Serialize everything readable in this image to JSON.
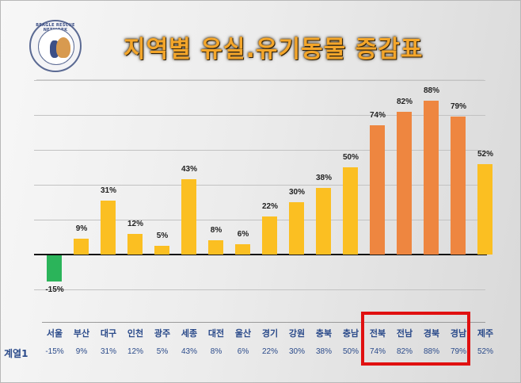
{
  "header": {
    "title": "지역별 유실.유기동물 증감표",
    "logo_text": "BEAGLE RESCUE NETWORK"
  },
  "table": {
    "series_label": "계열1"
  },
  "colors": {
    "negative": "#2bb45a",
    "positive": "#fbbf22",
    "highlight": "#ee8640",
    "highlight_box": "#e01010",
    "title": "#f4a62a"
  },
  "chart_data": {
    "type": "bar",
    "title": "지역별 유실.유기동물 증감표",
    "xlabel": "",
    "ylabel": "",
    "categories": [
      "서울",
      "부산",
      "대구",
      "인천",
      "광주",
      "세종",
      "대전",
      "울산",
      "경기",
      "강원",
      "충북",
      "충남",
      "전북",
      "전남",
      "경북",
      "경남",
      "제주"
    ],
    "series": [
      {
        "name": "계열1",
        "values": [
          -15,
          9,
          31,
          12,
          5,
          43,
          8,
          6,
          22,
          30,
          38,
          50,
          74,
          82,
          88,
          79,
          52
        ]
      }
    ],
    "data_labels": [
      "-15%",
      "9%",
      "31%",
      "12%",
      "5%",
      "43%",
      "8%",
      "6%",
      "22%",
      "30%",
      "38%",
      "50%",
      "74%",
      "82%",
      "88%",
      "79%",
      "52%"
    ],
    "highlighted_categories": [
      "전북",
      "전남",
      "경북",
      "경남"
    ],
    "ylim": [
      -20,
      100
    ],
    "grid": true,
    "legend": "data table below chart"
  }
}
